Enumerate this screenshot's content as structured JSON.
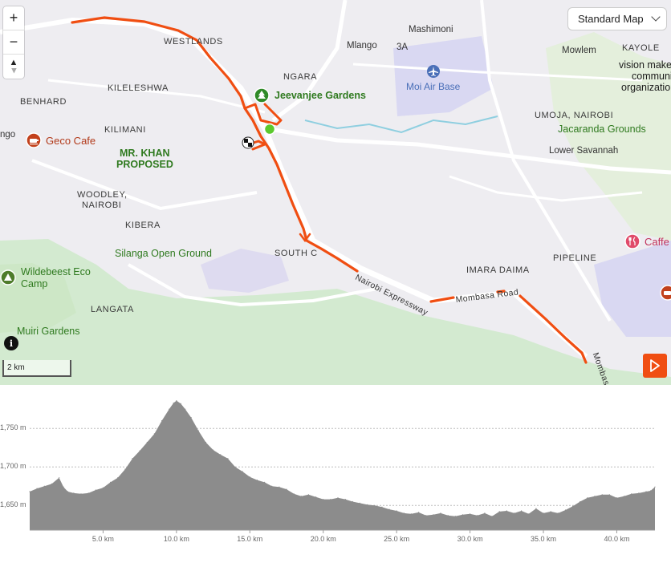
{
  "map": {
    "style_selector": {
      "label": "Standard Map"
    },
    "controls": {
      "zoom_in": "+",
      "zoom_out": "−",
      "compass": "▲"
    },
    "scale_label": "2 km",
    "labels": {
      "westlands": "WESTLANDS",
      "ngara": "NGARA",
      "mashimoni": "Mashimoni",
      "mlango": "Mlango",
      "three_a": "3A",
      "mowlem": "Mowlem",
      "kayole": "KAYOLE",
      "vision_maker": "vision make",
      "community": "community ba",
      "organization": "organization",
      "kileleshwa": "KILELESHWA",
      "benhard": "BENHARD",
      "kilimani": "KILIMANI",
      "ngo": "ngo",
      "umoja": "UMOJA, NAIROBI",
      "lower_savannah": "Lower Savannah",
      "woodley_1": "WOODLEY,",
      "woodley_2": "NAIROBI",
      "kibera": "KIBERA",
      "south_c": "SOUTH C",
      "imara_daima": "IMARA DAIMA",
      "pipeline": "PIPELINE",
      "langata": "LANGATA",
      "nairobi_expressway": "Nairobi Expressway",
      "mombasa_road": "Mombasa Road",
      "mombas": "Mombas"
    },
    "pois": {
      "jeevanjee": "Jeevanjee Gardens",
      "moi_air_base": "Moi Air Base",
      "geco_cafe": "Geco Cafe",
      "mr_khan_1": "MR. KHAN",
      "mr_khan_2": "PROPOSED",
      "jacaranda": "Jacaranda Grounds",
      "silanga": "Silanga Open Ground",
      "wildebeest_1": "Wildebeest Eco",
      "wildebeest_2": "Camp",
      "muiri": "Muiri Gardens",
      "caffe": "Caffe"
    },
    "icons": [
      "plus-icon",
      "minus-icon",
      "compass-icon",
      "chevron-down-icon",
      "tree-icon",
      "airport-icon",
      "cafe-icon",
      "camp-icon",
      "restaurant-icon",
      "start-marker-icon",
      "finish-flag-icon",
      "info-icon",
      "play-icon"
    ],
    "colors": {
      "route": "#f04e12",
      "start": "#5cc92e",
      "park": "#cfe7c1",
      "water": "#7ec4d8",
      "airport": "#d9d8f2"
    }
  },
  "chart_data": {
    "type": "area",
    "title": "",
    "xlabel": "",
    "ylabel": "",
    "xlim": [
      0,
      42.6
    ],
    "ylim": [
      1618,
      1796
    ],
    "yticks": [
      1650,
      1700,
      1750
    ],
    "ytick_labels": [
      "1,650 m",
      "1,700 m",
      "1,750 m"
    ],
    "xticks": [
      5,
      10,
      15,
      20,
      25,
      30,
      35,
      40
    ],
    "xtick_labels": [
      "5.0 km",
      "10.0 km",
      "15.0 km",
      "20.0 km",
      "25.0 km",
      "30.0 km",
      "35.0 km",
      "40.0 km"
    ],
    "grid": true,
    "series": [
      {
        "x": [
          0,
          0.5,
          1.0,
          1.5,
          2.0,
          2.3,
          2.6,
          3.0,
          3.5,
          4.0,
          4.5,
          5.0,
          5.5,
          6.0,
          6.5,
          7.0,
          7.5,
          8.0,
          8.5,
          9.0,
          9.5,
          9.8,
          10.0,
          10.3,
          10.6,
          11.0,
          11.5,
          12.0,
          12.5,
          13.0,
          13.5,
          14.0,
          14.5,
          15.0,
          15.5,
          16.0,
          16.5,
          17.0,
          17.5,
          18.0,
          18.5,
          19.0,
          19.5,
          20.0,
          20.5,
          21.0,
          21.5,
          22.0,
          22.5,
          23.0,
          23.5,
          24.0,
          24.5,
          25.0,
          25.5,
          26.0,
          26.5,
          27.0,
          27.5,
          28.0,
          28.5,
          29.0,
          29.5,
          30.0,
          30.5,
          31.0,
          31.5,
          32.0,
          32.5,
          33.0,
          33.5,
          34.0,
          34.5,
          35.0,
          35.5,
          36.0,
          36.5,
          37.0,
          37.5,
          38.0,
          38.5,
          39.0,
          39.5,
          40.0,
          40.5,
          41.0,
          41.5,
          42.0,
          42.3,
          42.6
        ],
        "y": [
          1668,
          1672,
          1675,
          1678,
          1686,
          1674,
          1668,
          1666,
          1665,
          1666,
          1670,
          1673,
          1680,
          1686,
          1697,
          1711,
          1721,
          1732,
          1743,
          1760,
          1775,
          1783,
          1786,
          1782,
          1775,
          1764,
          1747,
          1732,
          1722,
          1716,
          1711,
          1700,
          1694,
          1687,
          1683,
          1680,
          1675,
          1674,
          1671,
          1665,
          1662,
          1664,
          1661,
          1658,
          1658,
          1660,
          1658,
          1655,
          1653,
          1651,
          1650,
          1648,
          1645,
          1643,
          1640,
          1639,
          1641,
          1637,
          1638,
          1640,
          1637,
          1636,
          1638,
          1639,
          1637,
          1640,
          1636,
          1642,
          1643,
          1640,
          1643,
          1639,
          1646,
          1640,
          1642,
          1640,
          1644,
          1649,
          1655,
          1660,
          1662,
          1664,
          1664,
          1660,
          1662,
          1665,
          1666,
          1668,
          1669,
          1674
        ]
      }
    ]
  }
}
